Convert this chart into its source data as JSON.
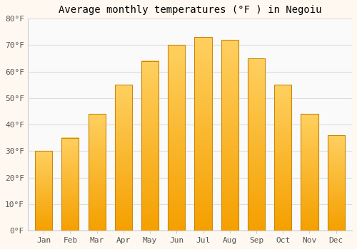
{
  "title": "Average monthly temperatures (°F ) in Negoiu",
  "months": [
    "Jan",
    "Feb",
    "Mar",
    "Apr",
    "May",
    "Jun",
    "Jul",
    "Aug",
    "Sep",
    "Oct",
    "Nov",
    "Dec"
  ],
  "values": [
    30,
    35,
    44,
    55,
    64,
    70,
    73,
    72,
    65,
    55,
    44,
    36
  ],
  "bar_color_top": "#FFD060",
  "bar_color_bottom": "#F5A000",
  "bar_edge_color": "#C8880A",
  "ylim": [
    0,
    80
  ],
  "yticks": [
    0,
    10,
    20,
    30,
    40,
    50,
    60,
    70,
    80
  ],
  "background_color": "#FFF8F0",
  "plot_bg_color": "#FAFAFA",
  "grid_color": "#DDDDDD",
  "title_fontsize": 10,
  "tick_fontsize": 8,
  "bar_width": 0.65
}
